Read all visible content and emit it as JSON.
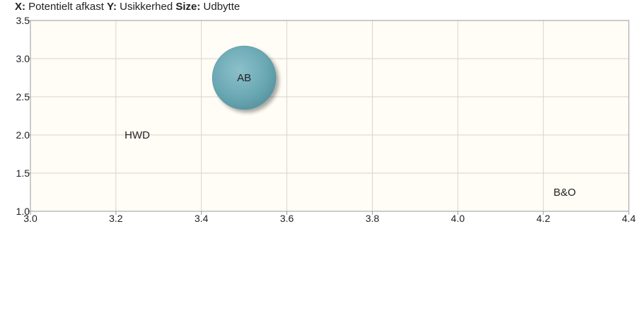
{
  "legend": {
    "x_key": "X:",
    "x_label": "Potentielt afkast",
    "y_key": "Y:",
    "y_label": "Usikkerhed",
    "size_key": "Size:",
    "size_label": "Udbytte"
  },
  "chart_data": {
    "type": "scatter",
    "subtype": "bubble",
    "xlabel": "Potentielt afkast",
    "ylabel": "Usikkerhed",
    "size_label": "Udbytte",
    "xlim": [
      3.0,
      4.4
    ],
    "ylim": [
      1.0,
      3.5
    ],
    "x_ticks": [
      "3.0",
      "3.2",
      "3.4",
      "3.6",
      "3.8",
      "4.0",
      "4.2",
      "4.4"
    ],
    "y_ticks": [
      "3.5",
      "3.0",
      "2.5",
      "2.0",
      "1.5",
      "1.0"
    ],
    "grid": true,
    "points": [
      {
        "label": "AB",
        "x": 3.5,
        "y": 2.75,
        "size": 1.0
      },
      {
        "label": "HWD",
        "x": 3.25,
        "y": 2.0,
        "size": 0
      },
      {
        "label": "B&O",
        "x": 4.25,
        "y": 1.25,
        "size": 0
      }
    ],
    "colors": {
      "plot_background": "#fffdf5",
      "grid": "#d4d4d4",
      "axis": "#999999",
      "bubble": "#6aa8b4",
      "bubble_edge": "#4e8f9c"
    }
  }
}
